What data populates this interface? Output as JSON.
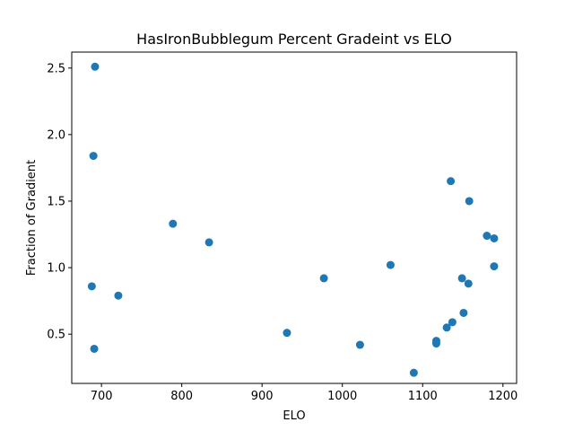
{
  "chart_data": {
    "type": "scatter",
    "title": "HasIronBubblegum Percent Gradeint vs ELO",
    "xlabel": "ELO",
    "ylabel": "Fraction of Gradient",
    "xlim": [
      663,
      1217
    ],
    "ylim": [
      0.13,
      2.62
    ],
    "xticks": [
      700,
      800,
      900,
      1000,
      1100,
      1200
    ],
    "xtick_labels": [
      "700",
      "800",
      "900",
      "1000",
      "1100",
      "1200"
    ],
    "yticks": [
      0.5,
      1.0,
      1.5,
      2.0,
      2.5
    ],
    "ytick_labels": [
      "0.5",
      "1.0",
      "1.5",
      "2.0",
      "2.5"
    ],
    "grid": false,
    "marker_color": "#1f77b4",
    "points": [
      {
        "x": 692,
        "y": 2.51
      },
      {
        "x": 690,
        "y": 1.84
      },
      {
        "x": 688,
        "y": 0.86
      },
      {
        "x": 691,
        "y": 0.39
      },
      {
        "x": 721,
        "y": 0.79
      },
      {
        "x": 789,
        "y": 1.33
      },
      {
        "x": 834,
        "y": 1.19
      },
      {
        "x": 931,
        "y": 0.51
      },
      {
        "x": 977,
        "y": 0.92
      },
      {
        "x": 1022,
        "y": 0.42
      },
      {
        "x": 1060,
        "y": 1.02
      },
      {
        "x": 1089,
        "y": 0.21
      },
      {
        "x": 1117,
        "y": 0.45
      },
      {
        "x": 1117,
        "y": 0.43
      },
      {
        "x": 1130,
        "y": 0.55
      },
      {
        "x": 1135,
        "y": 1.65
      },
      {
        "x": 1137,
        "y": 0.59
      },
      {
        "x": 1149,
        "y": 0.92
      },
      {
        "x": 1151,
        "y": 0.66
      },
      {
        "x": 1157,
        "y": 0.88
      },
      {
        "x": 1158,
        "y": 1.5
      },
      {
        "x": 1180,
        "y": 1.24
      },
      {
        "x": 1189,
        "y": 1.22
      },
      {
        "x": 1189,
        "y": 1.01
      }
    ]
  }
}
